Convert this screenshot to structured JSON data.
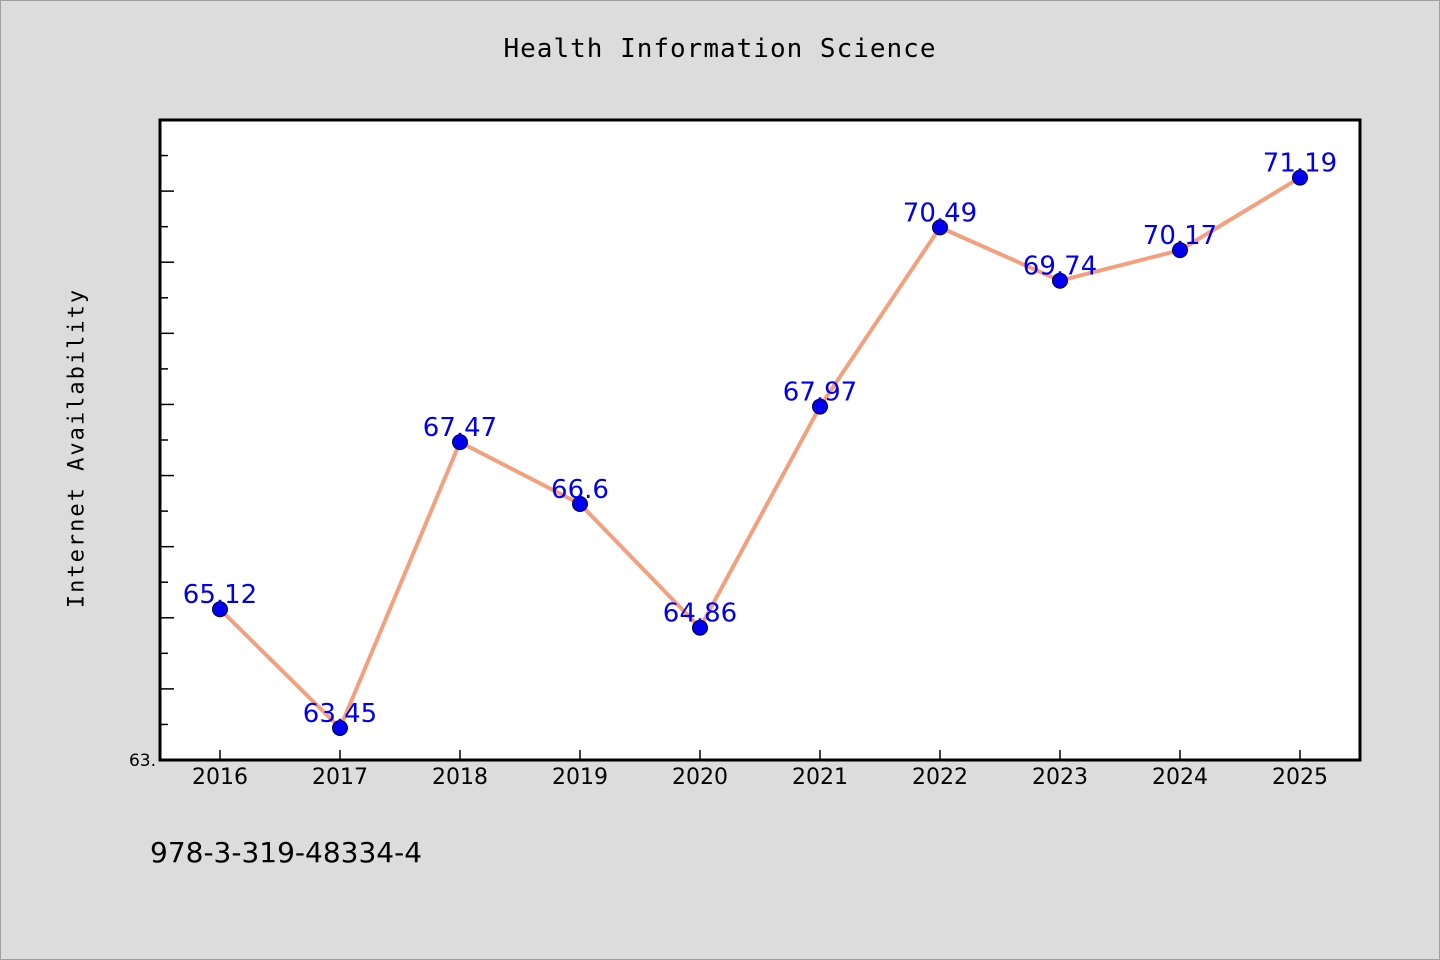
{
  "chart_data": {
    "type": "line",
    "title": "Health Information Science",
    "xlabel": "",
    "ylabel": "Internet Availability",
    "categories": [
      "2016",
      "2017",
      "2018",
      "2019",
      "2020",
      "2021",
      "2022",
      "2023",
      "2024",
      "2025"
    ],
    "series": [
      {
        "values": [
          65.12,
          63.45,
          67.47,
          66.6,
          64.86,
          67.97,
          70.49,
          69.74,
          70.17,
          71.19
        ],
        "data_labels": [
          "65.12",
          "63.45",
          "67.47",
          "66.6",
          "64.86",
          "67.97",
          "70.49",
          "69.74",
          "70.17",
          "71.19"
        ]
      }
    ],
    "ylim": [
      63.0,
      72.0
    ],
    "y_min_label": "63.",
    "grid": false,
    "legend": "none",
    "colors": {
      "line": "#f4a07e",
      "marker": "#0000ee",
      "data_label": "#0000ee",
      "plot_background": "#ffffff",
      "page_background": "#dcdcdc"
    }
  },
  "footnote": "978-3-319-48334-4"
}
